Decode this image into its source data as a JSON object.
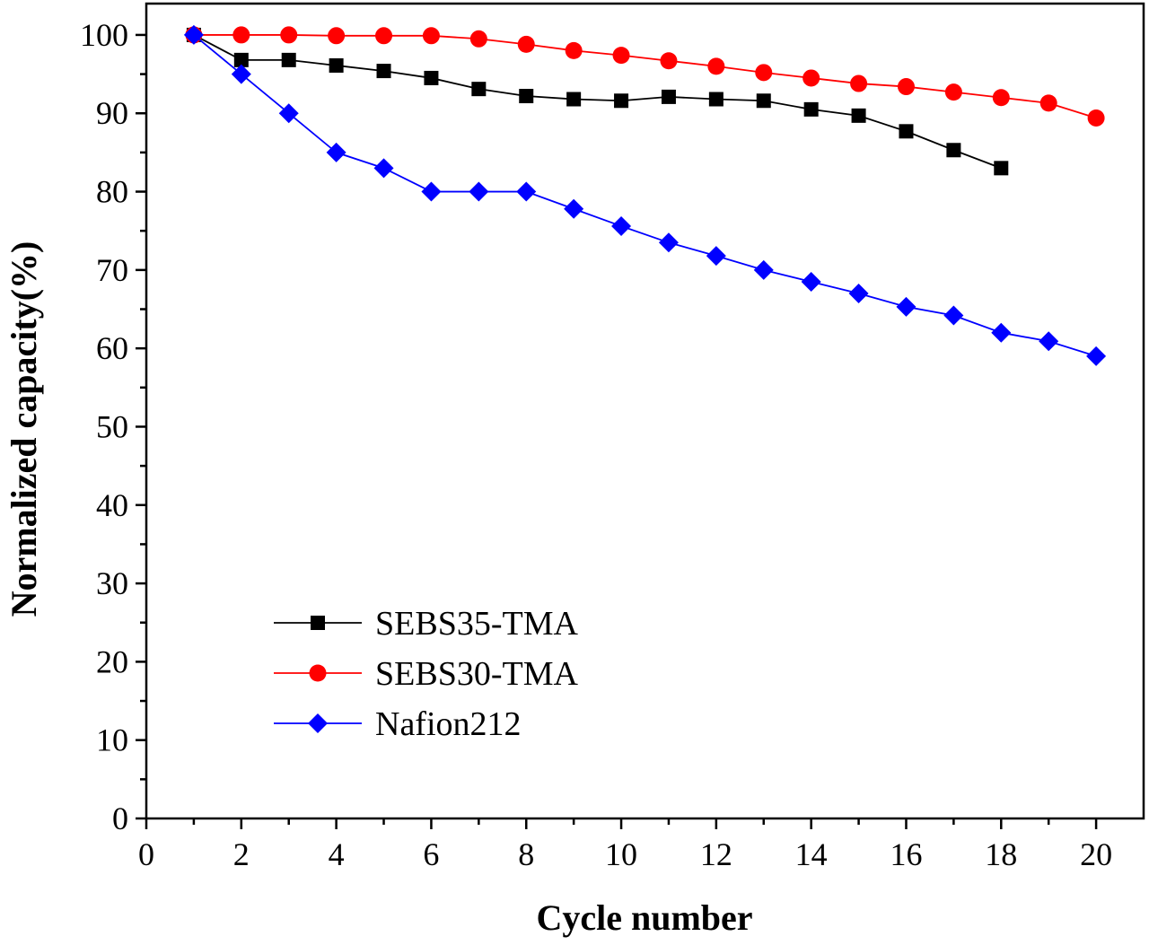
{
  "chart_data": {
    "type": "line",
    "xlabel": "Cycle number",
    "ylabel": "Normalized capacity(%)",
    "xlim": [
      0,
      21
    ],
    "ylim": [
      0,
      104
    ],
    "xticks": [
      0,
      2,
      4,
      6,
      8,
      10,
      12,
      14,
      16,
      18,
      20
    ],
    "yticks": [
      0,
      10,
      20,
      30,
      40,
      50,
      60,
      70,
      80,
      90,
      100
    ],
    "grid": false,
    "legend_position": "bottom-left",
    "series": [
      {
        "name": "SEBS35-TMA",
        "color": "#000000",
        "marker": "square",
        "x": [
          1,
          2,
          3,
          4,
          5,
          6,
          7,
          8,
          9,
          10,
          11,
          12,
          13,
          14,
          15,
          16,
          17,
          18
        ],
        "y": [
          100,
          96.8,
          96.8,
          96.1,
          95.4,
          94.5,
          93.1,
          92.2,
          91.8,
          91.6,
          92.1,
          91.8,
          91.6,
          90.5,
          89.7,
          87.7,
          85.3,
          83.0
        ]
      },
      {
        "name": "SEBS30-TMA",
        "color": "#ff0000",
        "marker": "circle",
        "x": [
          1,
          2,
          3,
          4,
          5,
          6,
          7,
          8,
          9,
          10,
          11,
          12,
          13,
          14,
          15,
          16,
          17,
          18,
          19,
          20
        ],
        "y": [
          100,
          100,
          100,
          99.9,
          99.9,
          99.9,
          99.5,
          98.8,
          98.0,
          97.4,
          96.7,
          96.0,
          95.2,
          94.5,
          93.8,
          93.4,
          92.7,
          92.0,
          91.3,
          89.4
        ]
      },
      {
        "name": "Nafion212",
        "color": "#0000ff",
        "marker": "diamond",
        "x": [
          1,
          2,
          3,
          4,
          5,
          6,
          7,
          8,
          9,
          10,
          11,
          12,
          13,
          14,
          15,
          16,
          17,
          18,
          19,
          20
        ],
        "y": [
          100,
          95,
          90,
          85,
          83,
          80,
          80,
          80,
          77.8,
          75.6,
          73.5,
          71.8,
          70.0,
          68.5,
          67.0,
          65.3,
          64.2,
          62.0,
          60.9,
          59.0
        ]
      }
    ]
  }
}
